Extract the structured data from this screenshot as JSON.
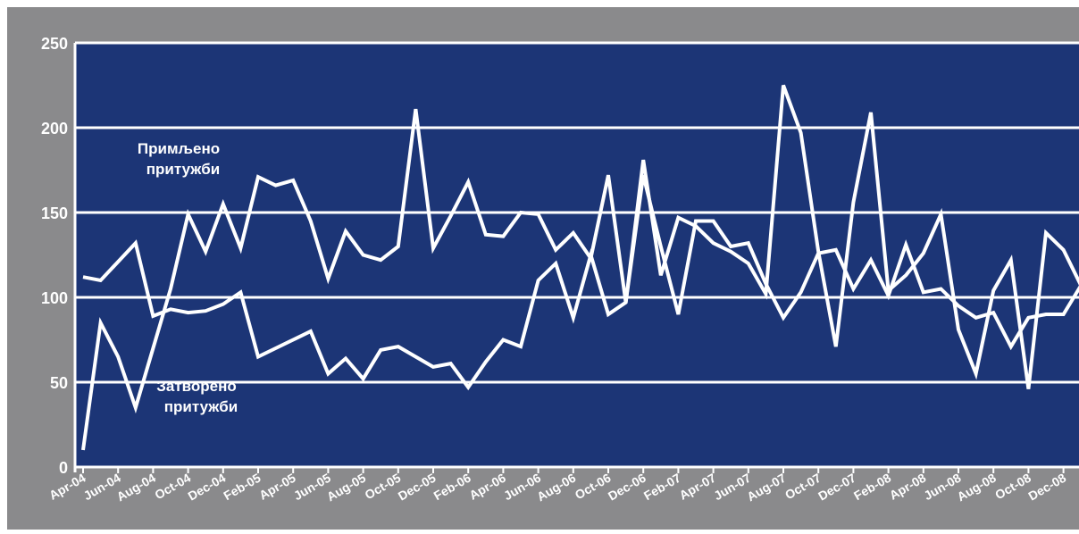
{
  "chart_data": {
    "type": "line",
    "title": "",
    "xlabel": "",
    "ylabel": "",
    "ylim": [
      0,
      250
    ],
    "yticks": [
      "0",
      "50",
      "100",
      "150",
      "200",
      "250"
    ],
    "grid": true,
    "colors": {
      "outer": "#8a8a8c",
      "plot": "#1c3576",
      "line": "#ffffff",
      "grid": "#ffffff"
    },
    "xtick_labels": [
      "Apr-04",
      "Jun-04",
      "Aug-04",
      "Oct-04",
      "Dec-04",
      "Feb-05",
      "Apr-05",
      "Jun-05",
      "Aug-05",
      "Oct-05",
      "Dec-05",
      "Feb-06",
      "Apr-06",
      "Jun-06",
      "Aug-06",
      "Oct-06",
      "Dec-06",
      "Feb-07",
      "Apr-07",
      "Jun-07",
      "Aug-07",
      "Oct-07",
      "Dec-07",
      "Feb-08",
      "Apr-08",
      "Jun-08",
      "Aug-08",
      "Oct-08",
      "Dec-08"
    ],
    "x": [
      "Apr-04",
      "May-04",
      "Jun-04",
      "Jul-04",
      "Aug-04",
      "Sep-04",
      "Oct-04",
      "Nov-04",
      "Dec-04",
      "Jan-05",
      "Feb-05",
      "Mar-05",
      "Apr-05",
      "May-05",
      "Jun-05",
      "Jul-05",
      "Aug-05",
      "Sep-05",
      "Oct-05",
      "Nov-05",
      "Dec-05",
      "Jan-06",
      "Feb-06",
      "Mar-06",
      "Apr-06",
      "May-06",
      "Jun-06",
      "Jul-06",
      "Aug-06",
      "Sep-06",
      "Oct-06",
      "Nov-06",
      "Dec-06",
      "Jan-07",
      "Feb-07",
      "Mar-07",
      "Apr-07",
      "May-07",
      "Jun-07",
      "Jul-07",
      "Aug-07",
      "Sep-07",
      "Oct-07",
      "Nov-07",
      "Dec-07",
      "Jan-08",
      "Feb-08",
      "Mar-08",
      "Apr-08",
      "May-08",
      "Jun-08",
      "Jul-08",
      "Aug-08",
      "Sep-08",
      "Oct-08",
      "Nov-08",
      "Dec-08",
      "Jan-09"
    ],
    "series": [
      {
        "label_lines": [
          "Примљено",
          "притужби"
        ],
        "values": [
          112,
          110,
          121,
          132,
          89,
          93,
          91,
          92,
          96,
          103,
          65,
          70,
          75,
          80,
          55,
          64,
          52,
          69,
          71,
          65,
          59,
          61,
          47,
          62,
          75,
          71,
          110,
          120,
          88,
          125,
          90,
          97,
          172,
          130,
          90,
          145,
          145,
          130,
          132,
          108,
          88,
          103,
          126,
          128,
          105,
          122,
          101,
          131,
          103,
          105,
          95,
          88,
          91,
          71,
          88,
          90,
          90,
          107
        ],
        "label_at": [
          200,
          172
        ]
      },
      {
        "label_lines": [
          "Затворено",
          "притужби"
        ],
        "values": [
          10,
          85,
          65,
          35,
          70,
          105,
          149,
          127,
          155,
          129,
          171,
          166,
          169,
          145,
          111,
          139,
          125,
          122,
          130,
          211,
          129,
          148,
          168,
          137,
          136,
          150,
          149,
          128,
          138,
          123,
          172,
          97,
          181,
          113,
          147,
          142,
          132,
          127,
          120,
          102,
          225,
          197,
          127,
          71,
          156,
          209,
          104,
          113,
          126,
          149,
          81,
          55,
          104,
          122,
          46,
          138,
          128,
          107
        ],
        "label_at": [
          220,
          438
        ]
      }
    ]
  }
}
